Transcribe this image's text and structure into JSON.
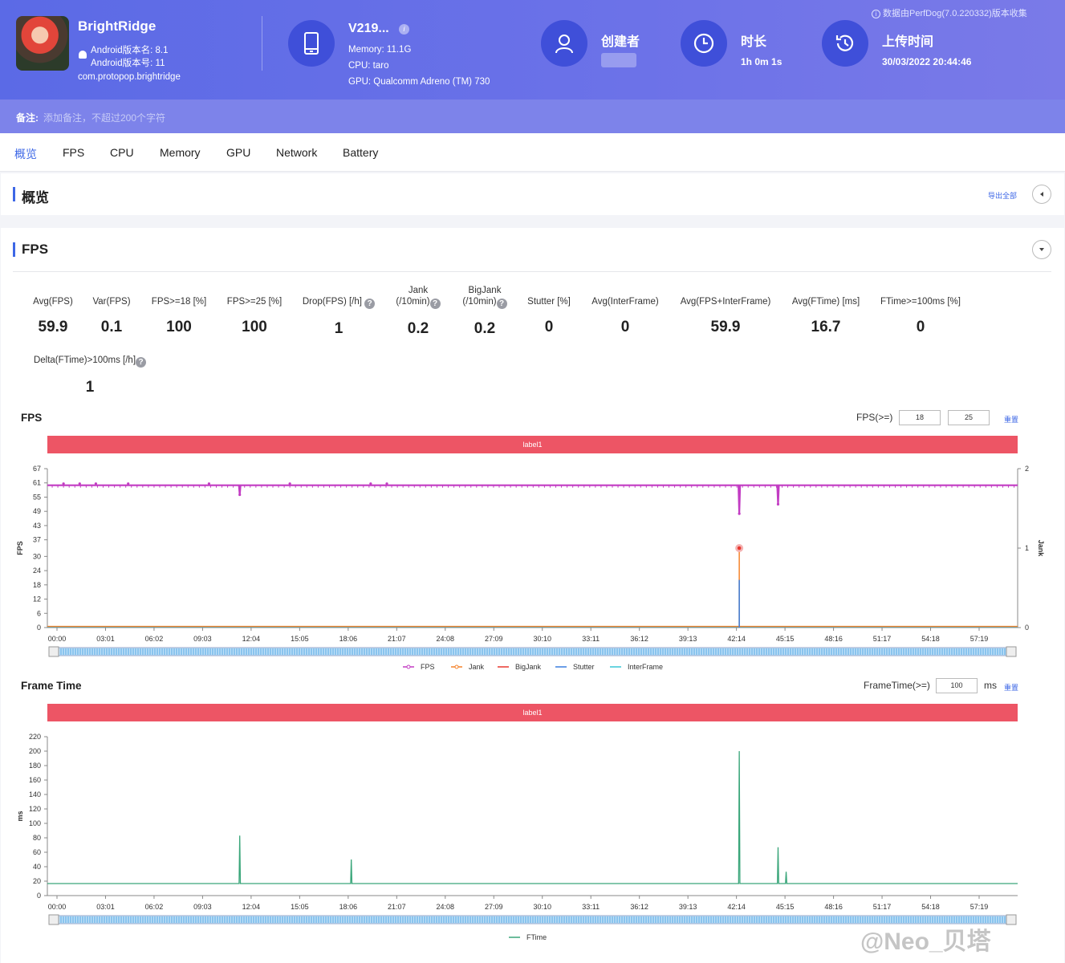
{
  "header": {
    "app": {
      "name": "BrightRidge",
      "android_version_name": "Android版本名: 8.1",
      "android_version_code": "Android版本号: 11",
      "package": "com.protopop.brightridge"
    },
    "device": {
      "model": "V219...",
      "memory": "Memory: 11.1G",
      "cpu": "CPU: taro",
      "gpu": "GPU: Qualcomm Adreno (TM) 730"
    },
    "creator": {
      "title": "创建者"
    },
    "duration": {
      "title": "时长",
      "value": "1h 0m 1s"
    },
    "upload": {
      "title": "上传时间",
      "value": "30/03/2022 20:44:46"
    },
    "collected_by": "数据由PerfDog(7.0.220332)版本收集"
  },
  "remark": {
    "label": "备注:",
    "placeholder": "添加备注，不超过200个字符"
  },
  "tabs": [
    "概览",
    "FPS",
    "CPU",
    "Memory",
    "GPU",
    "Network",
    "Battery"
  ],
  "overview": {
    "title": "概览",
    "export_label": "导出全部"
  },
  "fps_section": {
    "title": "FPS",
    "metrics": [
      {
        "label": "Avg(FPS)",
        "value": "59.9"
      },
      {
        "label": "Var(FPS)",
        "value": "0.1"
      },
      {
        "label": "FPS>=18 [%]",
        "value": "100"
      },
      {
        "label": "FPS>=25 [%]",
        "value": "100"
      },
      {
        "label": "Drop(FPS) [/h]",
        "value": "1"
      },
      {
        "label": "Jank",
        "label2": "(/10min)",
        "value": "0.2"
      },
      {
        "label": "BigJank",
        "label2": "(/10min)",
        "value": "0.2"
      },
      {
        "label": "Stutter [%]",
        "value": "0"
      },
      {
        "label": "Avg(InterFrame)",
        "value": "0"
      },
      {
        "label": "Avg(FPS+InterFrame)",
        "value": "59.9"
      },
      {
        "label": "Avg(FTime) [ms]",
        "value": "16.7"
      },
      {
        "label": "FTime>=100ms [%]",
        "value": "0"
      },
      {
        "label": "Delta(FTime)>100ms [/h]",
        "value": "1"
      }
    ]
  },
  "fps_chart": {
    "title": "FPS",
    "threshold_label": "FPS(>=)",
    "threshold_1": "18",
    "threshold_2": "25",
    "reset_label": "重置",
    "band_label": "label1"
  },
  "frametime_chart": {
    "title": "Frame Time",
    "threshold_label": "FrameTime(>=)",
    "threshold": "100",
    "unit": "ms",
    "reset_label": "重置",
    "band_label": "label1"
  },
  "chart_data": [
    {
      "type": "line",
      "title": "FPS",
      "xlabel": "",
      "ylabel": "FPS",
      "y2label": "Jank",
      "ylim": [
        0,
        67
      ],
      "y2lim": [
        0,
        2
      ],
      "yticks": [
        0,
        6,
        12,
        18,
        24,
        30,
        37,
        43,
        49,
        55,
        61,
        67
      ],
      "y2ticks": [
        0,
        1,
        2
      ],
      "x_ticks": [
        "00:00",
        "03:01",
        "06:02",
        "09:03",
        "12:04",
        "15:05",
        "18:06",
        "21:07",
        "24:08",
        "27:09",
        "30:10",
        "33:11",
        "36:12",
        "39:13",
        "42:14",
        "45:15",
        "48:16",
        "51:17",
        "54:18",
        "57:19"
      ],
      "series": [
        {
          "name": "FPS",
          "color": "#c23cc3",
          "baseline": 60,
          "dips": [
            {
              "x_min": 11.9,
              "y": 56
            },
            {
              "x_min": 42.8,
              "y": 48
            },
            {
              "x_min": 45.2,
              "y": 52
            }
          ]
        },
        {
          "name": "Jank",
          "color": "#f5832b",
          "events": [
            {
              "x_min": 42.8,
              "y": 1
            }
          ]
        },
        {
          "name": "BigJank",
          "color": "#e8382f",
          "events": [
            {
              "x_min": 42.8,
              "y": 1
            }
          ]
        },
        {
          "name": "Stutter",
          "color": "#3a7ddf",
          "events": [
            {
              "x_min": 42.8,
              "y": 0.6
            }
          ]
        },
        {
          "name": "InterFrame",
          "color": "#39c6d6",
          "values_constant": 0
        }
      ],
      "legend": "bottom"
    },
    {
      "type": "line",
      "title": "Frame Time",
      "xlabel": "",
      "ylabel": "ms",
      "ylim": [
        0,
        220
      ],
      "yticks": [
        0,
        20,
        40,
        60,
        80,
        100,
        120,
        140,
        160,
        180,
        200,
        220
      ],
      "x_ticks": [
        "00:00",
        "03:01",
        "06:02",
        "09:03",
        "12:04",
        "15:05",
        "18:06",
        "21:07",
        "24:08",
        "27:09",
        "30:10",
        "33:11",
        "36:12",
        "39:13",
        "42:14",
        "45:15",
        "48:16",
        "51:17",
        "54:18",
        "57:19"
      ],
      "series": [
        {
          "name": "FTime",
          "color": "#3aa67a",
          "baseline": 16.7,
          "spikes": [
            {
              "x_min": 11.9,
              "y": 83
            },
            {
              "x_min": 18.8,
              "y": 50
            },
            {
              "x_min": 42.8,
              "y": 200
            },
            {
              "x_min": 45.2,
              "y": 67
            },
            {
              "x_min": 45.7,
              "y": 33
            }
          ]
        }
      ],
      "legend": "bottom"
    }
  ]
}
